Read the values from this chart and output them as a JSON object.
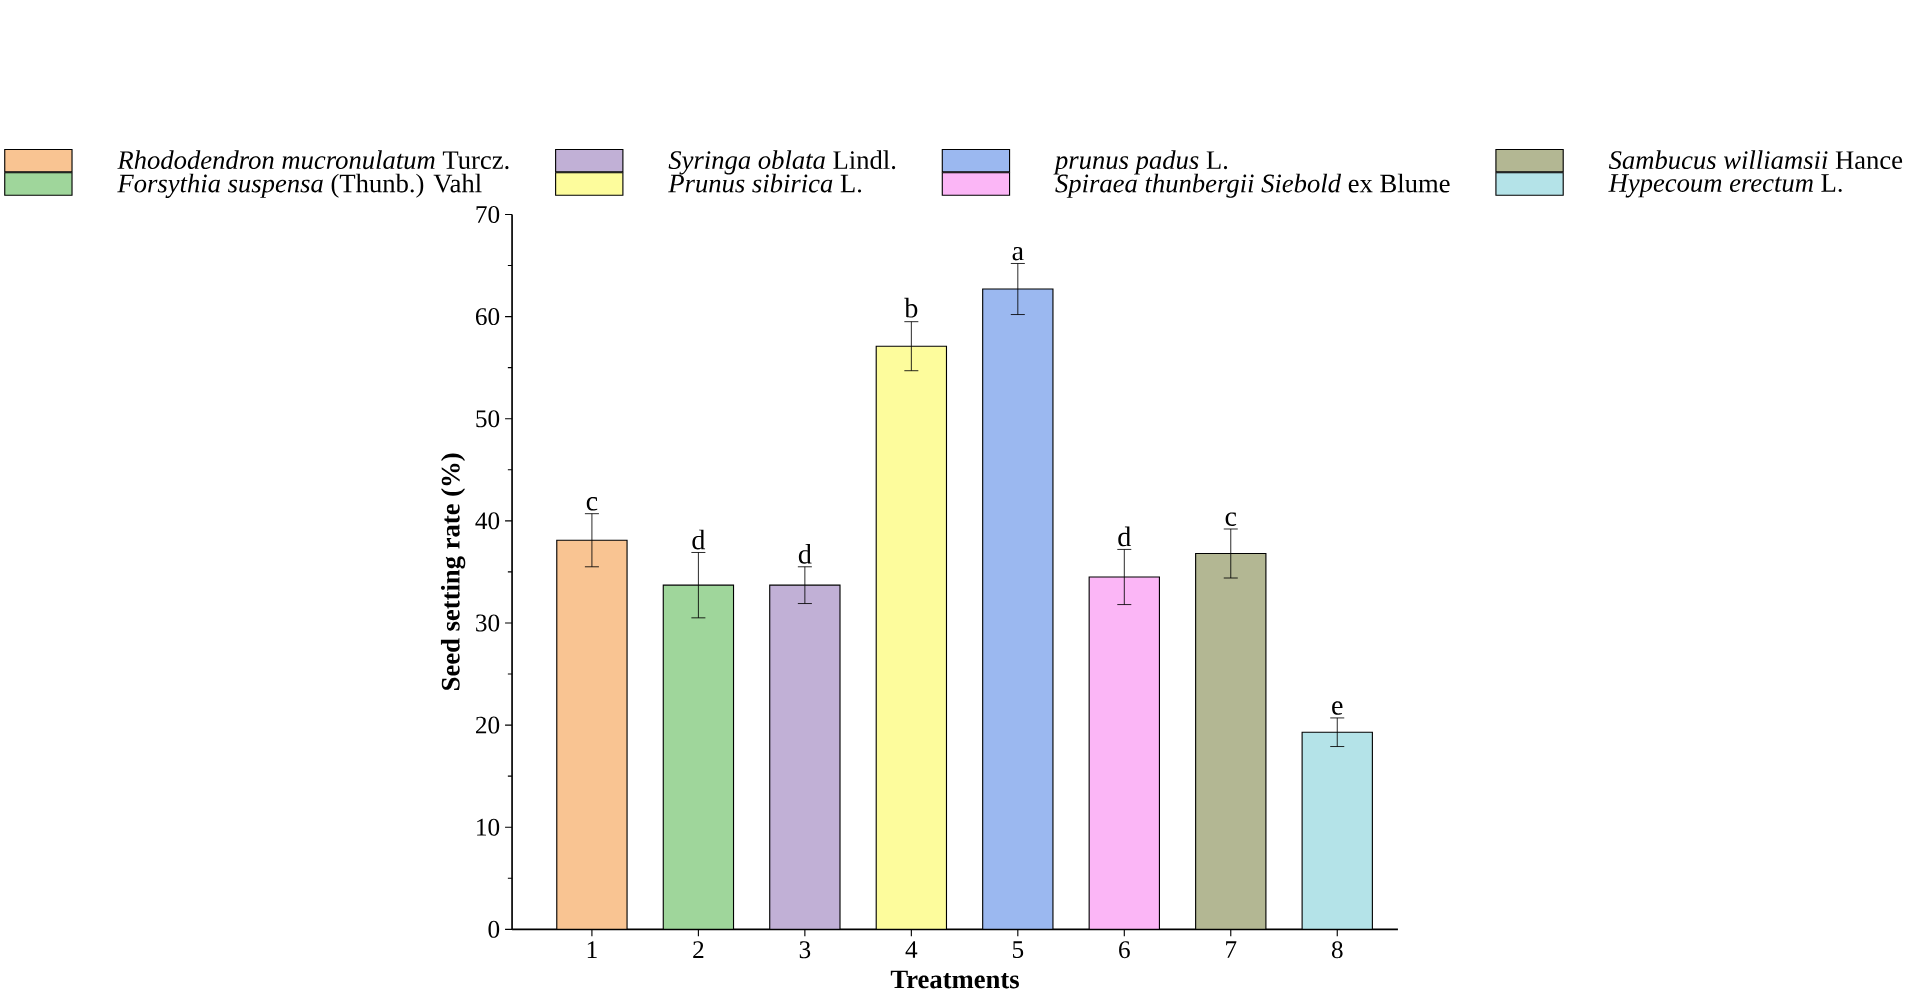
{
  "chart_data": {
    "type": "bar",
    "xlabel": "Treatments",
    "ylabel": "Seed setting rate (%)",
    "categories": [
      "1",
      "2",
      "3",
      "4",
      "5",
      "6",
      "7",
      "8"
    ],
    "ylim": [
      0,
      70
    ],
    "yticks": [
      0,
      10,
      20,
      30,
      40,
      50,
      60,
      70
    ],
    "legend": "top",
    "grid": false,
    "series": [
      {
        "name": "*Rhododendron mucronulatum* Turcz.",
        "color": "#f9c492",
        "values": [
          38.1,
          null,
          null,
          null,
          null,
          null,
          null,
          null
        ],
        "errors": [
          2.6,
          null,
          null,
          null,
          null,
          null,
          null,
          null
        ]
      },
      {
        "name": "*Forsythia suspensa* (Thunb.) Vahl",
        "color": "#9fd69b",
        "values": [
          null,
          33.7,
          null,
          null,
          null,
          null,
          null,
          null
        ],
        "errors": [
          null,
          3.2,
          null,
          null,
          null,
          null,
          null,
          null
        ]
      },
      {
        "name": "*Syringa oblata* Lindl.",
        "color": "#c1b0d6",
        "values": [
          null,
          null,
          33.7,
          null,
          null,
          null,
          null,
          null
        ],
        "errors": [
          null,
          null,
          1.8,
          null,
          null,
          null,
          null,
          null
        ]
      },
      {
        "name": "*Prunus sibirica* L.",
        "color": "#fdfc9c",
        "values": [
          null,
          null,
          null,
          57.1,
          null,
          null,
          null,
          null
        ],
        "errors": [
          null,
          null,
          null,
          2.4,
          null,
          null,
          null,
          null
        ]
      },
      {
        "name": "*prunus padus* L.",
        "color": "#9bb8f0",
        "values": [
          null,
          null,
          null,
          null,
          62.7,
          null,
          null,
          null
        ],
        "errors": [
          null,
          null,
          null,
          null,
          2.5,
          null,
          null,
          null
        ]
      },
      {
        "name": "*Spiraea thunbergii Siebold* ex Blume",
        "color": "#fbb6f6",
        "values": [
          null,
          null,
          null,
          null,
          null,
          34.5,
          null,
          null
        ],
        "errors": [
          null,
          null,
          null,
          null,
          null,
          2.7,
          null,
          null
        ]
      },
      {
        "name": "*Sambucus williamsii* Hance",
        "color": "#b3b793",
        "values": [
          null,
          null,
          null,
          null,
          null,
          null,
          36.8,
          null
        ],
        "errors": [
          null,
          null,
          null,
          null,
          null,
          null,
          2.4,
          null
        ]
      },
      {
        "name": "*Hypecoum erectum* L.",
        "color": "#b4e3e8",
        "values": [
          null,
          null,
          null,
          null,
          null,
          null,
          null,
          19.3
        ],
        "errors": [
          null,
          null,
          null,
          null,
          null,
          null,
          null,
          1.4
        ]
      }
    ],
    "annotations": [
      {
        "text": "c",
        "x": "1",
        "y": 40.7
      },
      {
        "text": "d",
        "x": "2",
        "y": 36.9
      },
      {
        "text": "d",
        "x": "3",
        "y": 35.5
      },
      {
        "text": "b",
        "x": "4",
        "y": 59.6
      },
      {
        "text": "a",
        "x": "5",
        "y": 65.2
      },
      {
        "text": "d",
        "x": "6",
        "y": 37.2
      },
      {
        "text": "c",
        "x": "7",
        "y": 39.2
      },
      {
        "text": "e",
        "x": "8",
        "y": 20.7
      }
    ]
  }
}
